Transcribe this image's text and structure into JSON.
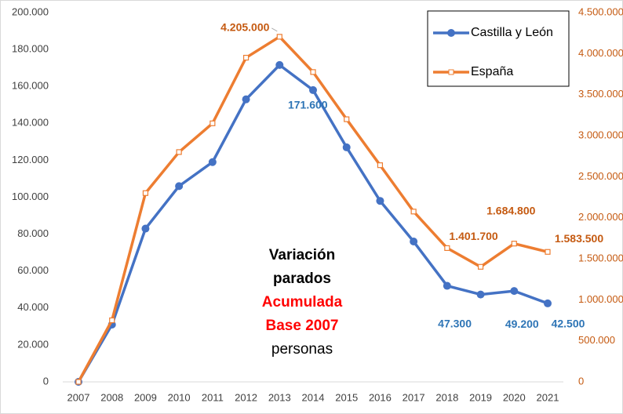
{
  "chart_data": {
    "type": "line",
    "categories": [
      "2007",
      "2008",
      "2009",
      "2010",
      "2011",
      "2012",
      "2013",
      "2014",
      "2015",
      "2016",
      "2017",
      "2018",
      "2019",
      "2020",
      "2021"
    ],
    "series": [
      {
        "name": "Castilla y León",
        "color": "#4472c4",
        "marker": "circle",
        "values": [
          0,
          31000,
          83000,
          106000,
          119000,
          153000,
          171600,
          158000,
          127000,
          98000,
          76000,
          52000,
          47300,
          49200,
          42500
        ],
        "value_labels": [
          null,
          null,
          null,
          null,
          null,
          null,
          "171.600",
          null,
          null,
          null,
          null,
          null,
          "47.300",
          "49.200",
          "42.500"
        ],
        "label_color": "#2e75b6"
      },
      {
        "name": "España",
        "color": "#ed7d31",
        "marker": "square",
        "axis": "y2",
        "values": [
          0,
          750000,
          2300000,
          2800000,
          3150000,
          3950000,
          4205000,
          3775000,
          3200000,
          2640000,
          2075000,
          1630000,
          1401700,
          1684800,
          1583500
        ],
        "value_labels": [
          null,
          null,
          null,
          null,
          null,
          null,
          "4.205.000",
          null,
          null,
          null,
          null,
          null,
          "1.401.700",
          "1.684.800",
          "1.583.500"
        ],
        "label_color": "#c55a11"
      }
    ],
    "ylim": [
      0,
      200000
    ],
    "yticks": [
      0,
      {
        "value": 20000,
        "label": "20.000"
      },
      {
        "value": 40000,
        "label": "40.000"
      },
      {
        "value": 60000,
        "label": "60.000"
      },
      {
        "value": 80000,
        "label": "80.000"
      },
      {
        "value": 100000,
        "label": "100.000"
      },
      {
        "value": 120000,
        "label": "120.000"
      },
      {
        "value": 140000,
        "label": "140.000"
      },
      {
        "value": 160000,
        "label": "160.000"
      },
      {
        "value": 180000,
        "label": "180.000"
      },
      {
        "value": 200000,
        "label": "200.000"
      }
    ],
    "y2lim": [
      0,
      4500000
    ],
    "y2ticks": [
      0,
      {
        "value": 500000,
        "label": "500.000"
      },
      {
        "value": 1000000,
        "label": "1.000.000"
      },
      {
        "value": 1500000,
        "label": "1.500.000"
      },
      {
        "value": 2000000,
        "label": "2.000.000"
      },
      {
        "value": 2500000,
        "label": "2.500.000"
      },
      {
        "value": 3000000,
        "label": "3.000.000"
      },
      {
        "value": 3500000,
        "label": "3.500.000"
      },
      {
        "value": 4000000,
        "label": "4.000.000"
      },
      {
        "value": 4500000,
        "label": "4.500.000"
      }
    ],
    "y2_color": "#c55a11",
    "grid": false,
    "legend": "top-right",
    "annotation": [
      {
        "text": "Variación",
        "color": "#000000",
        "bold": true
      },
      {
        "text": "parados",
        "color": "#000000",
        "bold": true
      },
      {
        "text": "Acumulada",
        "color": "#ff0000",
        "bold": true
      },
      {
        "text": "Base 2007",
        "color": "#ff0000",
        "bold": true
      },
      {
        "text": "personas",
        "color": "#000000",
        "bold": false
      }
    ]
  }
}
